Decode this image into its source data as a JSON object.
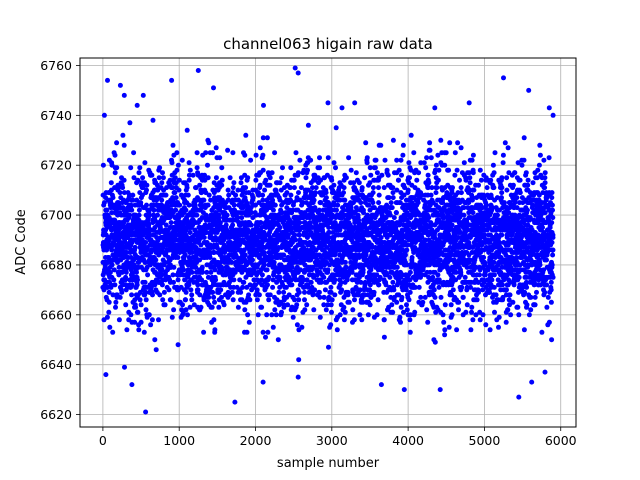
{
  "chart_data": {
    "type": "scatter",
    "title": "channel063 higain raw data",
    "xlabel": "sample number",
    "ylabel": "ADC Code",
    "xlim": [
      -300,
      6200
    ],
    "ylim": [
      6615,
      6763
    ],
    "x_ticks": [
      0,
      1000,
      2000,
      3000,
      4000,
      5000,
      6000
    ],
    "y_ticks": [
      6620,
      6640,
      6660,
      6680,
      6700,
      6720,
      6740,
      6760
    ],
    "x_tick_labels": [
      "0",
      "1000",
      "2000",
      "3000",
      "4000",
      "5000",
      "6000"
    ],
    "y_tick_labels": [
      "6620",
      "6640",
      "6660",
      "6680",
      "6700",
      "6720",
      "6740",
      "6760"
    ],
    "grid": true,
    "marker_color": "#0000ff",
    "series": [
      {
        "sample_count": 5900,
        "x_range": [
          0,
          5900
        ],
        "mean": 6690,
        "std": 14,
        "points": [
          {
            "x": 20,
            "y": 6740
          },
          {
            "x": 60,
            "y": 6754
          },
          {
            "x": 40,
            "y": 6636
          },
          {
            "x": 230,
            "y": 6752
          },
          {
            "x": 280,
            "y": 6748
          },
          {
            "x": 380,
            "y": 6632
          },
          {
            "x": 450,
            "y": 6744
          },
          {
            "x": 530,
            "y": 6748
          },
          {
            "x": 560,
            "y": 6621
          },
          {
            "x": 680,
            "y": 6650
          },
          {
            "x": 900,
            "y": 6754
          },
          {
            "x": 1250,
            "y": 6758
          },
          {
            "x": 1450,
            "y": 6751
          },
          {
            "x": 1730,
            "y": 6625
          },
          {
            "x": 2100,
            "y": 6633
          },
          {
            "x": 2520,
            "y": 6759
          },
          {
            "x": 2560,
            "y": 6757
          },
          {
            "x": 2560,
            "y": 6635
          },
          {
            "x": 2950,
            "y": 6745
          },
          {
            "x": 3300,
            "y": 6745
          },
          {
            "x": 3650,
            "y": 6632
          },
          {
            "x": 3950,
            "y": 6630
          },
          {
            "x": 4350,
            "y": 6743
          },
          {
            "x": 4420,
            "y": 6630
          },
          {
            "x": 4800,
            "y": 6745
          },
          {
            "x": 5250,
            "y": 6755
          },
          {
            "x": 5450,
            "y": 6627
          },
          {
            "x": 5580,
            "y": 6750
          },
          {
            "x": 5620,
            "y": 6633
          },
          {
            "x": 5850,
            "y": 6743
          },
          {
            "x": 5880,
            "y": 6650
          },
          {
            "x": 5900,
            "y": 6740
          }
        ]
      }
    ]
  }
}
